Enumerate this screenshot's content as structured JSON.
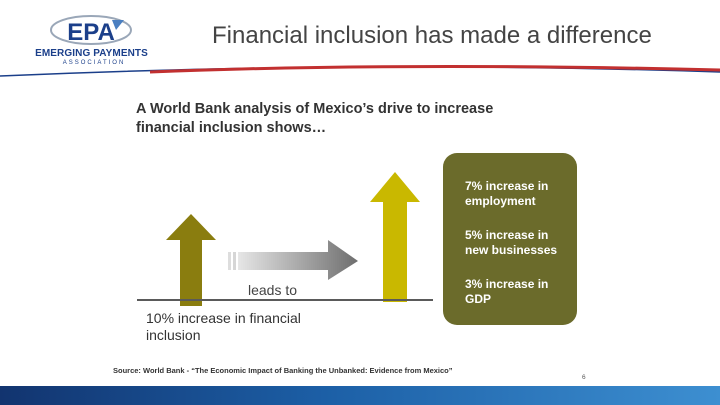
{
  "header": {
    "logo_text": "EMERGING PAYMENTS",
    "logo_subtext": "ASSOCIATION",
    "title": "Financial inclusion has made a difference"
  },
  "body": {
    "heading": "A World Bank analysis of Mexico’s drive to increase financial inclusion shows…",
    "leads_to": "leads to",
    "inclusion_label": "10% increase in financial inclusion",
    "results": [
      "7% increase in employment",
      "5% increase in new businesses",
      "3% increase in GDP"
    ]
  },
  "footer": {
    "source": "Source: World Bank - “The Economic Impact of Banking the Unbanked: Evidence from Mexico”",
    "page_number": "6"
  },
  "colors": {
    "left_arrow": "#8a7d0f",
    "right_arrow": "#c9b800",
    "results_box": "#6b6b2b",
    "header_line_red": "#c23030",
    "brand_blue": "#1b3f8a"
  }
}
